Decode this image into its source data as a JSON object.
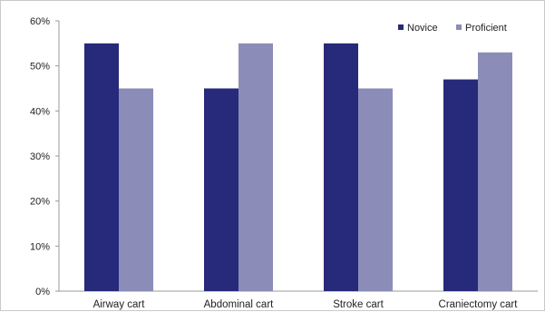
{
  "chart_data": {
    "type": "bar",
    "title": "",
    "xlabel": "",
    "ylabel": "",
    "categories": [
      "Airway cart",
      "Abdominal cart",
      "Stroke cart",
      "Craniectomy cart"
    ],
    "series": [
      {
        "name": "Novice",
        "values": [
          55,
          45,
          55,
          47
        ],
        "color": "#27297a"
      },
      {
        "name": "Proficient",
        "values": [
          45,
          55,
          45,
          53
        ],
        "color": "#8b8db8"
      }
    ],
    "ylim": [
      0,
      60
    ],
    "yticks": [
      0,
      10,
      20,
      30,
      40,
      50,
      60
    ],
    "ytick_labels": [
      "0%",
      "10%",
      "20%",
      "30%",
      "40%",
      "50%",
      "60%"
    ],
    "grid": false,
    "legend": "top-right",
    "colors": {
      "axis": "#9a9a9a",
      "border": "#c9c9c9"
    }
  }
}
